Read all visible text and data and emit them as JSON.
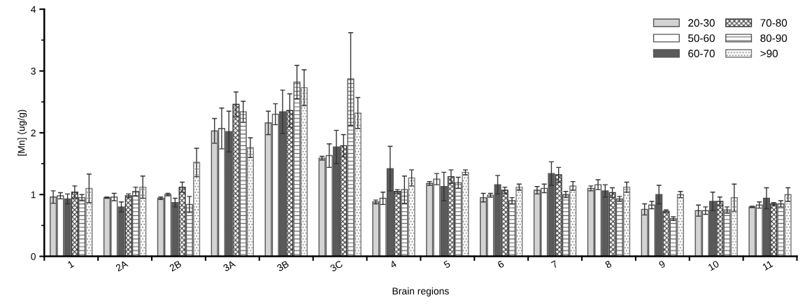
{
  "chart_data": {
    "type": "bar",
    "xlabel": "Brain regions",
    "ylabel": "[Mn] (ug/g)",
    "categories": [
      "1",
      "2A",
      "2B",
      "3A",
      "3B",
      "3C",
      "4",
      "5",
      "6",
      "7",
      "8",
      "9",
      "10",
      "11"
    ],
    "ylim": [
      0,
      4
    ],
    "yticks": [
      0,
      1,
      2,
      3,
      4
    ],
    "grid": false,
    "legend": "top right",
    "series": [
      {
        "name": "20-30",
        "color": "#d3d3d3",
        "values": [
          0.96,
          0.95,
          0.94,
          2.03,
          2.16,
          1.59,
          0.88,
          1.18,
          0.95,
          1.07,
          1.1,
          0.76,
          0.74,
          0.8
        ],
        "errors": [
          0.1,
          0.01,
          0.02,
          0.2,
          0.19,
          0.03,
          0.03,
          0.03,
          0.07,
          0.06,
          0.04,
          0.09,
          0.09,
          0.01
        ]
      },
      {
        "name": "50-60",
        "color": "#ffffff",
        "values": [
          0.98,
          0.96,
          1.0,
          2.07,
          2.3,
          1.63,
          0.94,
          1.25,
          0.99,
          1.1,
          1.16,
          0.83,
          0.74,
          0.83
        ],
        "errors": [
          0.05,
          0.06,
          0.02,
          0.33,
          0.17,
          0.19,
          0.1,
          0.09,
          0.03,
          0.07,
          0.08,
          0.06,
          0.06,
          0.05
        ]
      },
      {
        "name": "60-70",
        "color": "#5a5a5a",
        "values": [
          0.93,
          0.8,
          0.87,
          2.02,
          2.34,
          1.77,
          1.42,
          1.13,
          1.16,
          1.34,
          1.06,
          1.0,
          0.89,
          0.94
        ],
        "errors": [
          0.08,
          0.08,
          0.07,
          0.33,
          0.35,
          0.27,
          0.36,
          0.23,
          0.15,
          0.19,
          0.1,
          0.15,
          0.15,
          0.17
        ]
      },
      {
        "name": "70-80",
        "color": "#333333",
        "values": [
          1.04,
          0.98,
          1.12,
          2.46,
          2.36,
          1.79,
          1.05,
          1.29,
          1.07,
          1.32,
          1.03,
          0.73,
          0.89,
          0.85
        ],
        "errors": [
          0.1,
          0.03,
          0.08,
          0.2,
          0.27,
          0.18,
          0.03,
          0.11,
          0.05,
          0.12,
          0.08,
          0.02,
          0.07,
          0.02
        ]
      },
      {
        "name": "80-90",
        "color": "#555555",
        "values": [
          0.95,
          1.05,
          0.84,
          2.34,
          2.82,
          2.87,
          1.08,
          1.19,
          0.9,
          1.0,
          0.93,
          0.61,
          0.75,
          0.85
        ],
        "errors": [
          0.05,
          0.07,
          0.13,
          0.17,
          0.27,
          0.75,
          0.22,
          0.09,
          0.05,
          0.05,
          0.04,
          0.03,
          0.05,
          0.05
        ]
      },
      {
        "name": ">90",
        "color": "#777777",
        "values": [
          1.1,
          1.12,
          1.52,
          1.76,
          2.73,
          2.32,
          1.27,
          1.36,
          1.12,
          1.14,
          1.12,
          1.0,
          0.95,
          1.0
        ],
        "errors": [
          0.23,
          0.18,
          0.23,
          0.16,
          0.29,
          0.25,
          0.13,
          0.04,
          0.05,
          0.07,
          0.08,
          0.05,
          0.22,
          0.11
        ]
      }
    ]
  }
}
